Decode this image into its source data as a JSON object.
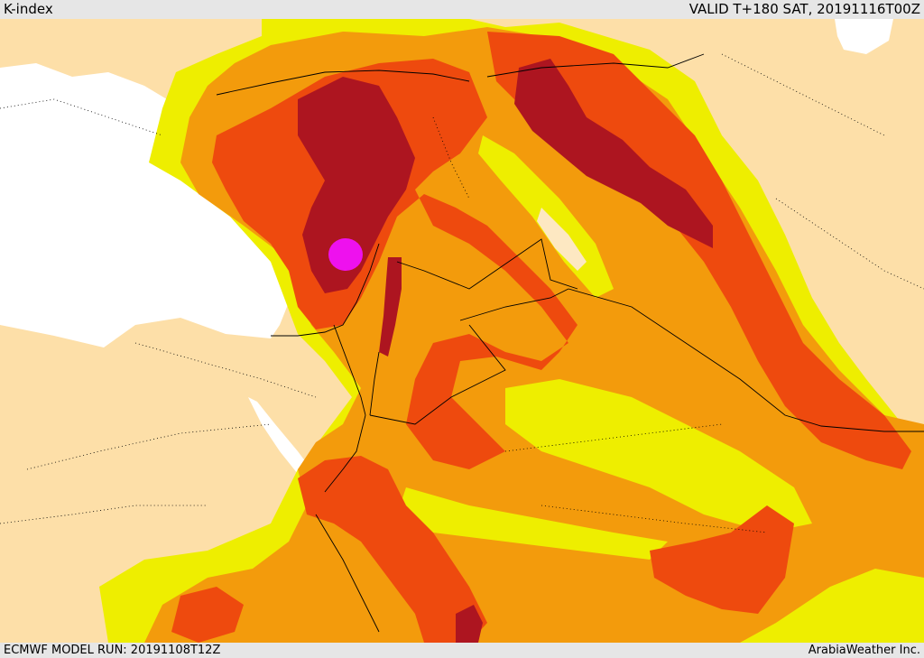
{
  "header": {
    "field_name": "K-index",
    "valid_time": "VALID T+180 SAT, 20191116T00Z"
  },
  "footer": {
    "model_run": "ECMWF MODEL RUN: 20191108T12Z",
    "credit": "ArabiaWeather Inc."
  },
  "map": {
    "region": "Middle East",
    "palette": {
      "land_bg": "#fddfa8",
      "sea": "#ffffff",
      "yellow": "#eeee00",
      "orange": "#f39b0c",
      "red_orange": "#ee4a0e",
      "dark_red": "#ad1520",
      "magenta": "#ee11ee",
      "light_bg_shade": "#fde8c2",
      "border": "#000000"
    }
  }
}
